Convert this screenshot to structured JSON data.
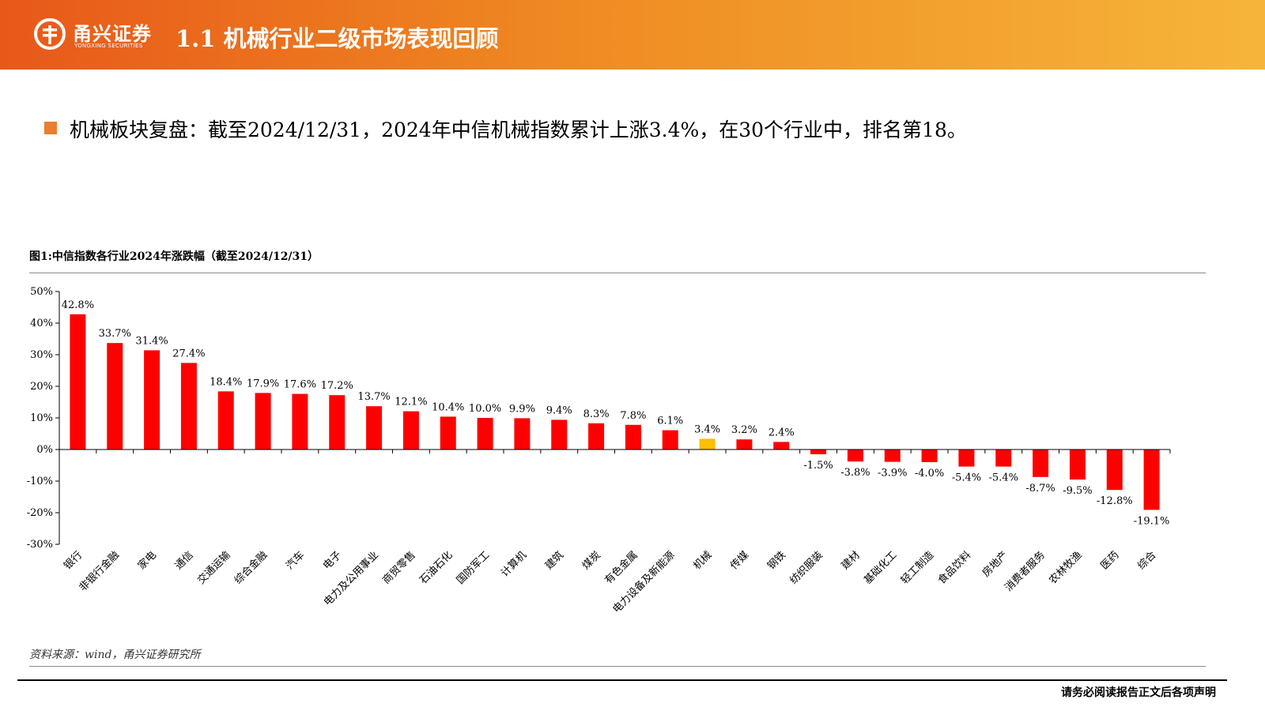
{
  "header": {
    "brand_cn": "甬兴证券",
    "brand_en": "YONGXING SECURITIES",
    "title": "1.1 机械行业二级市场表现回顾"
  },
  "bullet": {
    "text": "机械板块复盘：截至2024/12/31，2024年中信机械指数累计上涨3.4%，在30个行业中，排名第18。"
  },
  "figure": {
    "title": "图1:中信指数各行业2024年涨跌幅（截至2024/12/31）",
    "source": "资料来源：wind，甬兴证券研究所"
  },
  "footer": {
    "disclaimer": "请务必阅读报告正文后各项声明"
  },
  "colors": {
    "bar_default": "#ff0000",
    "bar_highlight": "#ffc000",
    "header_start": "#e8581a",
    "header_end": "#f6b53a",
    "bullet": "#ea7d2e"
  },
  "chart_data": {
    "type": "bar",
    "title": "",
    "xlabel": "",
    "ylabel": "",
    "ylim": [
      -30,
      50
    ],
    "yticks": [
      50,
      40,
      30,
      20,
      10,
      0,
      -10,
      -20,
      -30
    ],
    "ytick_labels": [
      "50%",
      "40%",
      "30%",
      "20%",
      "10%",
      "0%",
      "-10%",
      "-20%",
      "-30%"
    ],
    "grid": false,
    "highlight_category": "机械",
    "categories": [
      "银行",
      "非银行金融",
      "家电",
      "通信",
      "交通运输",
      "综合金融",
      "汽车",
      "电子",
      "电力及公用事业",
      "商贸零售",
      "石油石化",
      "国防军工",
      "计算机",
      "建筑",
      "煤炭",
      "有色金属",
      "电力设备及新能源",
      "机械",
      "传媒",
      "钢铁",
      "纺织服装",
      "建材",
      "基础化工",
      "轻工制造",
      "食品饮料",
      "房地产",
      "消费者服务",
      "农林牧渔",
      "医药",
      "综合"
    ],
    "values": [
      42.8,
      33.7,
      31.4,
      27.4,
      18.4,
      17.9,
      17.6,
      17.2,
      13.7,
      12.1,
      10.4,
      10.0,
      9.9,
      9.4,
      8.3,
      7.8,
      6.1,
      3.4,
      3.2,
      2.4,
      -1.5,
      -3.8,
      -3.9,
      -4.0,
      -5.4,
      -5.4,
      -8.7,
      -9.5,
      -12.8,
      -19.1
    ],
    "value_labels": [
      "42.8%",
      "33.7%",
      "31.4%",
      "27.4%",
      "18.4%",
      "17.9%",
      "17.6%",
      "17.2%",
      "13.7%",
      "12.1%",
      "10.4%",
      "10.0%",
      "9.9%",
      "9.4%",
      "8.3%",
      "7.8%",
      "6.1%",
      "3.4%",
      "3.2%",
      "2.4%",
      "-1.5%",
      "-3.8%",
      "-3.9%",
      "-4.0%",
      "-5.4%",
      "-5.4%",
      "-8.7%",
      "-9.5%",
      "-12.8%",
      "-19.1%"
    ]
  }
}
